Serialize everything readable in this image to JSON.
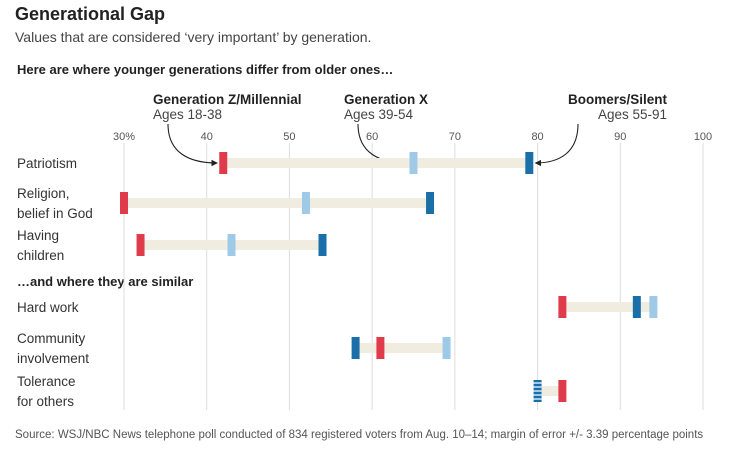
{
  "header": {
    "title": "Generational Gap",
    "subtitle": "Values that are considered ‘very important’ by generation."
  },
  "sections": {
    "differ": "Here are where younger generations differ from older ones…",
    "similar": "…and where they are similar"
  },
  "footer": {
    "source": "Source: WSJ/NBC News telephone poll conducted of 834 registered voters from Aug. 10–14; margin of error +/- 3.39 percentage points"
  },
  "colors": {
    "genz": "#e03b4a",
    "genx": "#9ecae8",
    "boomers": "#1a6fa8",
    "band": "#f0ede0",
    "grid": "#dddddd"
  },
  "chart_data": {
    "type": "range_dot",
    "title": "Generational Gap",
    "subtitle": "Values that are considered ‘very important’ by generation.",
    "xlim": [
      30,
      100
    ],
    "x_ticks": [
      "30%",
      "40",
      "50",
      "60",
      "70",
      "80",
      "90",
      "100"
    ],
    "series": [
      {
        "key": "genz",
        "name": "Generation Z/Millennial",
        "ages": "Ages 18-38"
      },
      {
        "key": "genx",
        "name": "Generation X",
        "ages": "Ages 39-54"
      },
      {
        "key": "boomers",
        "name": "Boomers/Silent",
        "ages": "Ages 55-91"
      }
    ],
    "categories": [
      {
        "label": [
          "Patriotism"
        ],
        "genz": 42,
        "genx": 65,
        "boomers": 79,
        "group": "differ"
      },
      {
        "label": [
          "Religion,",
          "belief in God"
        ],
        "genz": 30,
        "genx": 52,
        "boomers": 67,
        "group": "differ"
      },
      {
        "label": [
          "Having",
          "children"
        ],
        "genz": 32,
        "genx": 43,
        "boomers": 54,
        "group": "differ"
      },
      {
        "label": [
          "Hard work"
        ],
        "genz": 83,
        "genx": 94,
        "boomers": 92,
        "group": "similar"
      },
      {
        "label": [
          "Community",
          "involvement"
        ],
        "genz": 61,
        "genx": 69,
        "boomers": 58,
        "group": "similar"
      },
      {
        "label": [
          "Tolerance",
          "for others"
        ],
        "genz": 83,
        "genx": 80,
        "boomers": 80,
        "group": "similar"
      }
    ]
  }
}
